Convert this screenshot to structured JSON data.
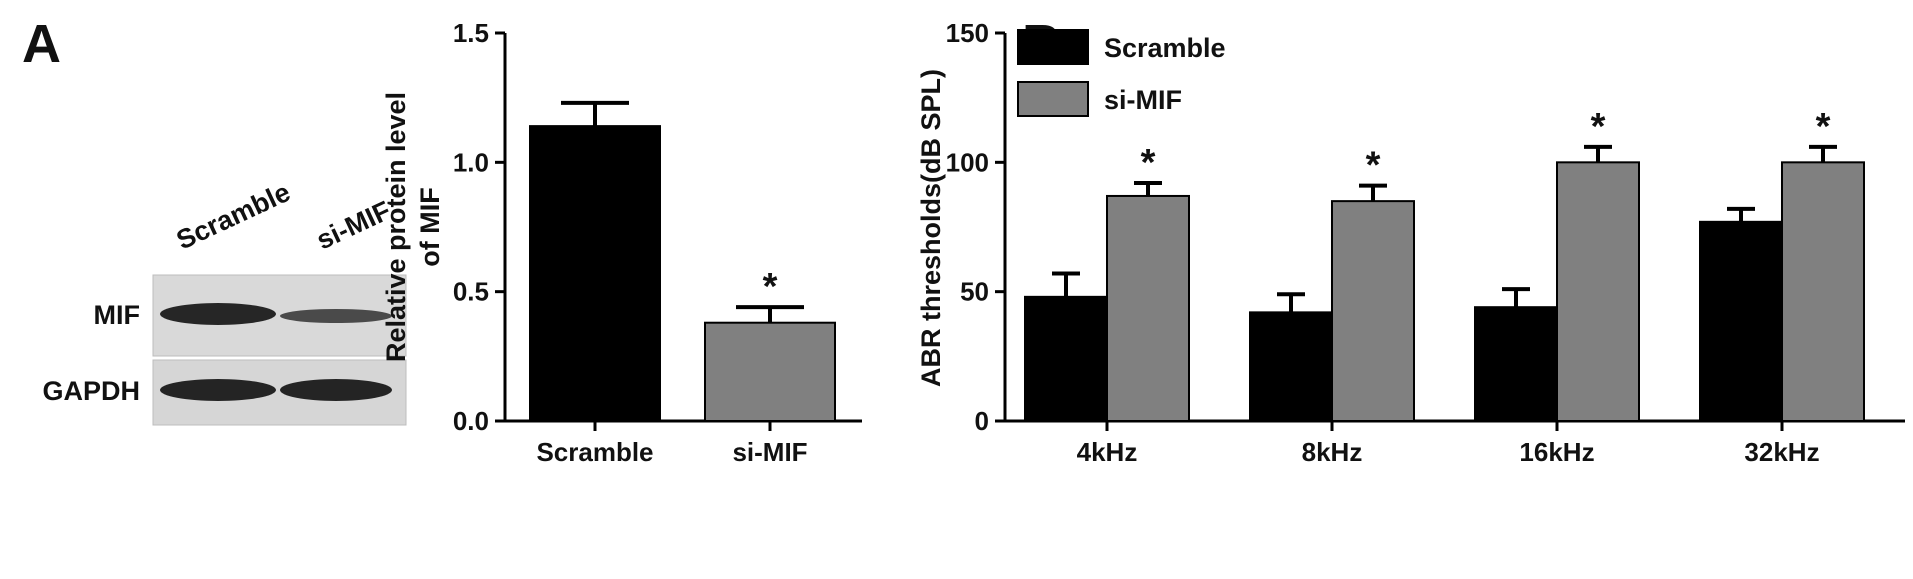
{
  "panels": {
    "A": "A",
    "B": "B"
  },
  "blot": {
    "lanes": [
      "Scramble",
      "si-MIF"
    ],
    "rows": [
      "MIF",
      "GAPDH"
    ]
  },
  "chart_data": [
    {
      "id": "panel-a-bar",
      "type": "bar",
      "title": "",
      "xlabel": "",
      "ylabel_lines": [
        "Relative protein level",
        "of MIF"
      ],
      "categories": [
        "Scramble",
        "si-MIF"
      ],
      "values": [
        1.14,
        0.38
      ],
      "errors": [
        0.09,
        0.06
      ],
      "significance": [
        "",
        "*"
      ],
      "colors": [
        "#000000",
        "#808080"
      ],
      "ylim": [
        0,
        1.5
      ],
      "yticks": [
        0.0,
        0.5,
        1.0,
        1.5
      ],
      "ytick_labels": [
        "0.0",
        "0.5",
        "1.0",
        "1.5"
      ],
      "grid": false,
      "legend": "none"
    },
    {
      "id": "panel-b-bar",
      "type": "bar",
      "title": "",
      "xlabel": "",
      "ylabel": "ABR thresholds(dB SPL)",
      "categories": [
        "4kHz",
        "8kHz",
        "16kHz",
        "32kHz"
      ],
      "series": [
        {
          "name": "Scramble",
          "color": "#000000",
          "values": [
            48,
            42,
            44,
            77
          ],
          "errors": [
            9,
            7,
            7,
            5
          ],
          "significance": [
            "",
            "",
            "",
            ""
          ]
        },
        {
          "name": "si-MIF",
          "color": "#808080",
          "values": [
            87,
            85,
            100,
            100
          ],
          "errors": [
            5,
            6,
            6,
            6
          ],
          "significance": [
            "*",
            "*",
            "*",
            "*"
          ]
        }
      ],
      "ylim": [
        0,
        150
      ],
      "yticks": [
        0,
        50,
        100,
        150
      ],
      "ytick_labels": [
        "0",
        "50",
        "100",
        "150"
      ],
      "grid": false,
      "legend": "top-left"
    }
  ]
}
